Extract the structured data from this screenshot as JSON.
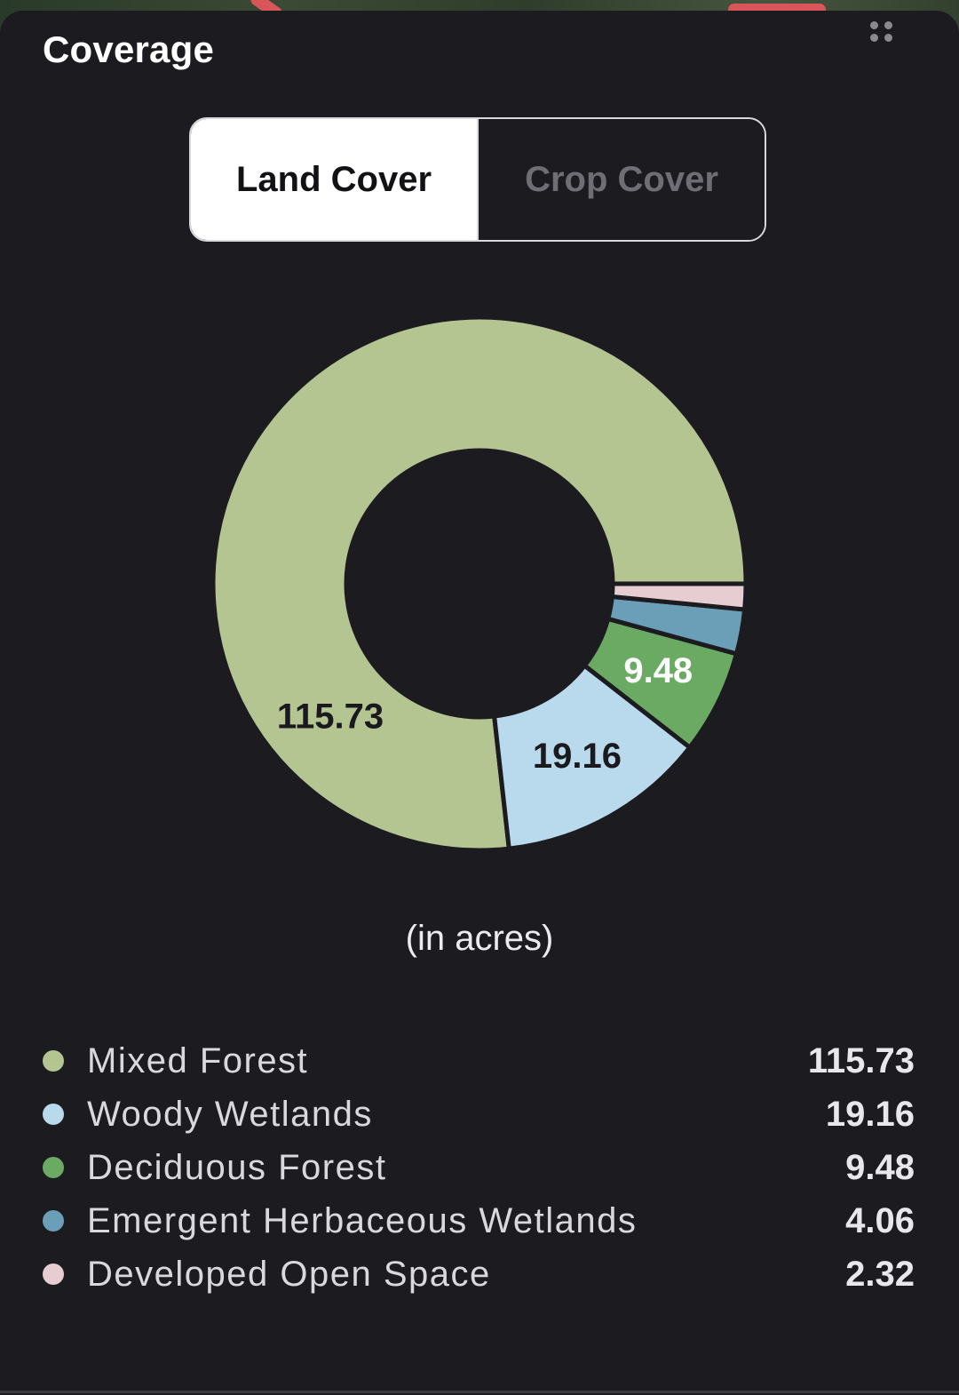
{
  "panel": {
    "title": "Coverage"
  },
  "tabs": [
    {
      "label": "Land Cover",
      "active": true
    },
    {
      "label": "Crop Cover",
      "active": false
    }
  ],
  "chart_data": {
    "type": "pie",
    "unit_note": "(in acres)",
    "categories": [
      "Mixed Forest",
      "Woody Wetlands",
      "Deciduous Forest",
      "Emergent Herbaceous Wetlands",
      "Developed Open Space"
    ],
    "values": [
      115.73,
      19.16,
      9.48,
      4.06,
      2.32
    ],
    "colors": [
      "#b4c592",
      "#b9d9ec",
      "#6aaa62",
      "#6b9fb8",
      "#e6cdd1"
    ],
    "data_labels": [
      "115.73",
      "19.16",
      "9.48",
      "",
      ""
    ]
  },
  "legend": {
    "items": [
      {
        "label": "Mixed Forest",
        "value": "115.73",
        "color": "#b4c592"
      },
      {
        "label": "Woody Wetlands",
        "value": "19.16",
        "color": "#b9d9ec"
      },
      {
        "label": "Deciduous Forest",
        "value": "9.48",
        "color": "#6aaa62"
      },
      {
        "label": "Emergent Herbaceous Wetlands",
        "value": "4.06",
        "color": "#6b9fb8"
      },
      {
        "label": "Developed Open Space",
        "value": "2.32",
        "color": "#e6cdd1"
      }
    ]
  },
  "icons": {
    "drag_handle": "drag-handle-icon"
  }
}
